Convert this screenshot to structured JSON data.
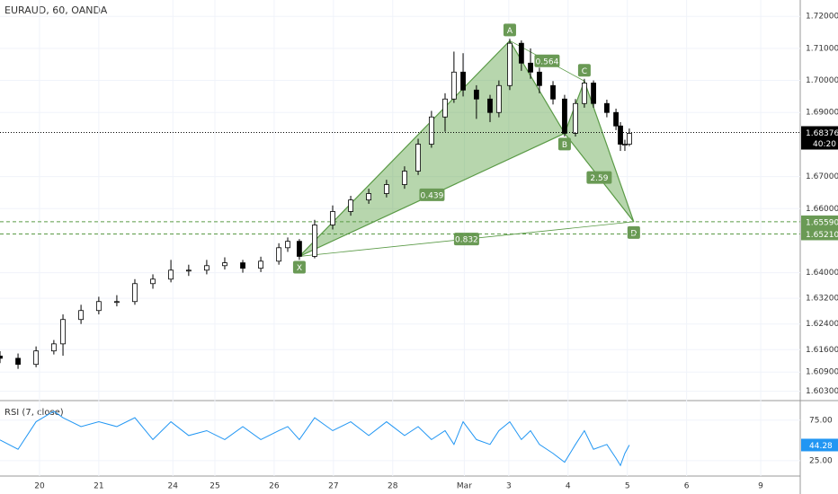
{
  "chart_data": {
    "type": "candlestick",
    "title": "EURAUD, 60, OANDA",
    "xlim": [
      0,
      324
    ],
    "xticks": [
      {
        "value": 16,
        "label": "20"
      },
      {
        "value": 40,
        "label": "21"
      },
      {
        "value": 70,
        "label": "24"
      },
      {
        "value": 87,
        "label": "25"
      },
      {
        "value": 111,
        "label": "26"
      },
      {
        "value": 135,
        "label": "27"
      },
      {
        "value": 159,
        "label": "28"
      },
      {
        "value": 188,
        "label": "Mar"
      },
      {
        "value": 206,
        "label": "3"
      },
      {
        "value": 230,
        "label": "4"
      },
      {
        "value": 254,
        "label": "5"
      },
      {
        "value": 278,
        "label": "6"
      },
      {
        "value": 308,
        "label": "9"
      }
    ],
    "ylim": [
      1.6001,
      1.7251
    ],
    "yticks": [
      {
        "value": 1.72,
        "label": "1.72000"
      },
      {
        "value": 1.71,
        "label": "1.71000"
      },
      {
        "value": 1.7,
        "label": "1.70000"
      },
      {
        "value": 1.69,
        "label": "1.69000"
      },
      {
        "value": 1.67,
        "label": "1.67000"
      },
      {
        "value": 1.66,
        "label": "1.66000"
      },
      {
        "value": 1.64,
        "label": "1.64000"
      },
      {
        "value": 1.632,
        "label": "1.63200"
      },
      {
        "value": 1.624,
        "label": "1.62400"
      },
      {
        "value": 1.616,
        "label": "1.61600"
      },
      {
        "value": 1.609,
        "label": "1.60900"
      },
      {
        "value": 1.603,
        "label": "1.60300"
      }
    ],
    "x": [
      0,
      7.3,
      14.6,
      21.8,
      25.5,
      32.8,
      40,
      47.3,
      54.6,
      61.9,
      69.2,
      76.4,
      83.7,
      91,
      98.3,
      105.6,
      112.9,
      116.5,
      121.2,
      127.4,
      134.7,
      142,
      149.3,
      156.5,
      163.8,
      169.3,
      174.7,
      180.2,
      183.8,
      187.5,
      192.9,
      198.4,
      202,
      206.4,
      211.1,
      214.8,
      218.4,
      223.9,
      228.6,
      233,
      236.6,
      240.3,
      245.7,
      249.4,
      251.2,
      253,
      254.8
    ],
    "ohlc": [
      [
        1.614,
        1.6155,
        1.6118,
        1.6133
      ],
      [
        1.6133,
        1.6148,
        1.61,
        1.6114
      ],
      [
        1.6114,
        1.617,
        1.6105,
        1.6156
      ],
      [
        1.6156,
        1.619,
        1.6145,
        1.6178
      ],
      [
        1.6178,
        1.627,
        1.6141,
        1.6254
      ],
      [
        1.6254,
        1.63,
        1.624,
        1.6282
      ],
      [
        1.6282,
        1.6325,
        1.627,
        1.631
      ],
      [
        1.631,
        1.633,
        1.6295,
        1.631
      ],
      [
        1.631,
        1.638,
        1.63,
        1.6366
      ],
      [
        1.6366,
        1.6395,
        1.635,
        1.638
      ],
      [
        1.638,
        1.644,
        1.637,
        1.6408
      ],
      [
        1.6408,
        1.6425,
        1.639,
        1.6408
      ],
      [
        1.6408,
        1.644,
        1.6395,
        1.6422
      ],
      [
        1.6422,
        1.6448,
        1.641,
        1.6431
      ],
      [
        1.6431,
        1.644,
        1.64,
        1.6414
      ],
      [
        1.6414,
        1.645,
        1.6402,
        1.6436
      ],
      [
        1.6436,
        1.6492,
        1.6425,
        1.6478
      ],
      [
        1.6478,
        1.651,
        1.6465,
        1.6498
      ],
      [
        1.6498,
        1.6505,
        1.644,
        1.6451
      ],
      [
        1.6451,
        1.6565,
        1.6445,
        1.6549
      ],
      [
        1.6549,
        1.661,
        1.6535,
        1.6591
      ],
      [
        1.6591,
        1.664,
        1.6578,
        1.6627
      ],
      [
        1.6627,
        1.6662,
        1.6615,
        1.6647
      ],
      [
        1.6647,
        1.669,
        1.6635,
        1.6675
      ],
      [
        1.6675,
        1.6732,
        1.6662,
        1.6717
      ],
      [
        1.6717,
        1.6818,
        1.6705,
        1.6801
      ],
      [
        1.6801,
        1.6905,
        1.679,
        1.6886
      ],
      [
        1.6886,
        1.696,
        1.684,
        1.6942
      ],
      [
        1.6942,
        1.709,
        1.693,
        1.7026
      ],
      [
        1.7026,
        1.7085,
        1.695,
        1.697
      ],
      [
        1.697,
        1.6985,
        1.688,
        1.6942
      ],
      [
        1.6942,
        1.6955,
        1.687,
        1.69
      ],
      [
        1.69,
        1.7,
        1.6885,
        1.6984
      ],
      [
        1.6984,
        1.713,
        1.697,
        1.7116
      ],
      [
        1.7116,
        1.7125,
        1.703,
        1.7054
      ],
      [
        1.7054,
        1.71,
        1.7005,
        1.7026
      ],
      [
        1.7026,
        1.704,
        1.696,
        1.6984
      ],
      [
        1.6984,
        1.6998,
        1.6925,
        1.6942
      ],
      [
        1.6942,
        1.6955,
        1.6825,
        1.6835
      ],
      [
        1.6835,
        1.6942,
        1.6825,
        1.6928
      ],
      [
        1.6928,
        1.7005,
        1.6915,
        1.6992
      ],
      [
        1.6992,
        1.7,
        1.6915,
        1.6928
      ],
      [
        1.6928,
        1.694,
        1.6885,
        1.69
      ],
      [
        1.69,
        1.6912,
        1.6845,
        1.6858
      ],
      [
        1.6858,
        1.687,
        1.678,
        1.6801
      ],
      [
        1.6801,
        1.6815,
        1.678,
        1.6801
      ],
      [
        1.6801,
        1.685,
        1.6795,
        1.6835
      ]
    ],
    "price_line": {
      "value": 1.68376,
      "label": "1.68376"
    },
    "countdown": "40:20",
    "levels": [
      {
        "value": 1.6559,
        "label": "1.65590"
      },
      {
        "value": 1.6521,
        "label": "1.65210"
      }
    ],
    "pattern": {
      "points": [
        {
          "name": "X",
          "x": 121.2,
          "price": 1.6451
        },
        {
          "name": "A",
          "x": 206.4,
          "price": 1.7124
        },
        {
          "name": "B",
          "x": 228.6,
          "price": 1.6835
        },
        {
          "name": "C",
          "x": 236.6,
          "price": 1.6998
        },
        {
          "name": "D",
          "x": 256.6,
          "price": 1.6559
        }
      ],
      "ratios": [
        0.439,
        0.564,
        2.59,
        0.832
      ]
    },
    "rsi": {
      "title": "RSI (7, close)",
      "ylim": [
        6,
        98
      ],
      "yticks": [
        {
          "value": 75,
          "label": "75.00"
        },
        {
          "value": 25,
          "label": "25.00"
        }
      ],
      "color": "#2196f3",
      "values": [
        50.6,
        39,
        73,
        86,
        78,
        67,
        73,
        67,
        78,
        51,
        73,
        56,
        62,
        51,
        67,
        51,
        62,
        67,
        51,
        78,
        62,
        73,
        56,
        73,
        56,
        67,
        51,
        62,
        45,
        73,
        51,
        45,
        62,
        73,
        51,
        62,
        45,
        34,
        23,
        45,
        62,
        39,
        45,
        28,
        19,
        34,
        44.28
      ]
    }
  }
}
